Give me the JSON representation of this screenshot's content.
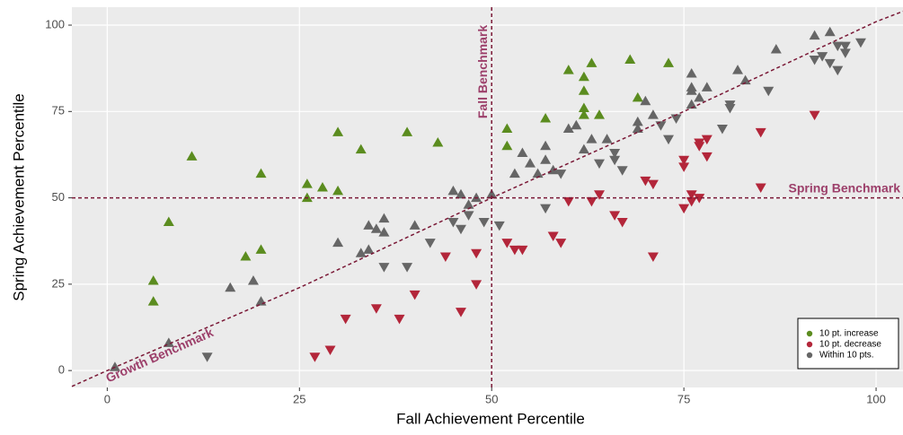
{
  "chart_data": {
    "type": "scatter",
    "x_label": "Fall Achievement Percentile",
    "y_label": "Spring Achievement Percentile",
    "xlim": [
      -4.6,
      103.5
    ],
    "ylim": [
      -4.9,
      105.2
    ],
    "xticks": [
      0,
      25,
      50,
      75,
      100
    ],
    "yticks": [
      0,
      25,
      50,
      75,
      100
    ],
    "grid": true,
    "legend": "bottom-right",
    "series": [
      {
        "name": "10 pt. increase",
        "color": "#5b8c1f",
        "x": [
          6,
          6,
          8,
          11,
          18,
          20,
          20,
          26,
          26,
          28,
          30,
          30,
          33,
          39,
          43,
          52,
          52,
          57,
          60,
          62,
          62,
          62,
          62,
          63,
          64,
          68,
          69,
          73
        ],
        "values": [
          26,
          20,
          43,
          62,
          33,
          57,
          35,
          54,
          50,
          53,
          69,
          52,
          64,
          69,
          66,
          70,
          65,
          73,
          87,
          85,
          81,
          76,
          74,
          89,
          74,
          90,
          79,
          89
        ]
      },
      {
        "name": "10 pt. decrease",
        "color": "#b3263a",
        "x": [
          27,
          29,
          31,
          35,
          38,
          40,
          44,
          46,
          48,
          48,
          52,
          53,
          54,
          58,
          59,
          60,
          63,
          64,
          66,
          67,
          70,
          71,
          71,
          75,
          75,
          75,
          76,
          76,
          77,
          77,
          77,
          78,
          78,
          85,
          85,
          92
        ],
        "values": [
          4,
          6,
          15,
          18,
          15,
          22,
          33,
          17,
          34,
          25,
          37,
          35,
          35,
          39,
          37,
          49,
          49,
          51,
          45,
          43,
          55,
          54,
          33,
          59,
          61,
          47,
          51,
          49,
          50,
          66,
          65,
          67,
          62,
          69,
          53,
          74
        ]
      },
      {
        "name": "Within 10 pts.",
        "color": "#666666",
        "x": [
          1,
          8,
          13,
          16,
          19,
          20,
          30,
          33,
          34,
          34,
          35,
          36,
          36,
          36,
          39,
          40,
          42,
          45,
          45,
          46,
          46,
          47,
          47,
          48,
          49,
          50,
          51,
          53,
          54,
          55,
          56,
          57,
          57,
          57,
          58,
          59,
          60,
          61,
          62,
          63,
          64,
          65,
          66,
          66,
          67,
          69,
          69,
          70,
          71,
          72,
          73,
          74,
          76,
          76,
          76,
          76,
          77,
          78,
          80,
          81,
          81,
          82,
          83,
          86,
          87,
          92,
          92,
          93,
          94,
          94,
          95,
          95,
          96,
          96,
          98
        ],
        "values": [
          1,
          8,
          4,
          24,
          26,
          20,
          37,
          34,
          35,
          42,
          41,
          44,
          40,
          30,
          30,
          42,
          37,
          52,
          43,
          51,
          41,
          45,
          48,
          50,
          43,
          51,
          42,
          57,
          63,
          60,
          57,
          65,
          47,
          61,
          58,
          57,
          70,
          71,
          64,
          67,
          60,
          67,
          63,
          61,
          58,
          70,
          72,
          78,
          74,
          71,
          67,
          73,
          86,
          82,
          81,
          77,
          79,
          82,
          70,
          77,
          76,
          87,
          84,
          81,
          93,
          97,
          90,
          91,
          98,
          89,
          94,
          87,
          92,
          94,
          95
        ]
      }
    ],
    "benchmark_color": "#7a1836",
    "benchmark_label_color": "#9c3f6a",
    "fall_benchmark": {
      "value": 50,
      "label": "Fall Benchmark"
    },
    "spring_benchmark": {
      "value": 50,
      "label": "Spring Benchmark"
    },
    "growth_benchmark": {
      "label": "Growth Benchmark",
      "x": [
        -4.6,
        0,
        25,
        50,
        75,
        100,
        103.5
      ],
      "y": [
        -4.6,
        0,
        24,
        50,
        75,
        101,
        104
      ]
    }
  }
}
